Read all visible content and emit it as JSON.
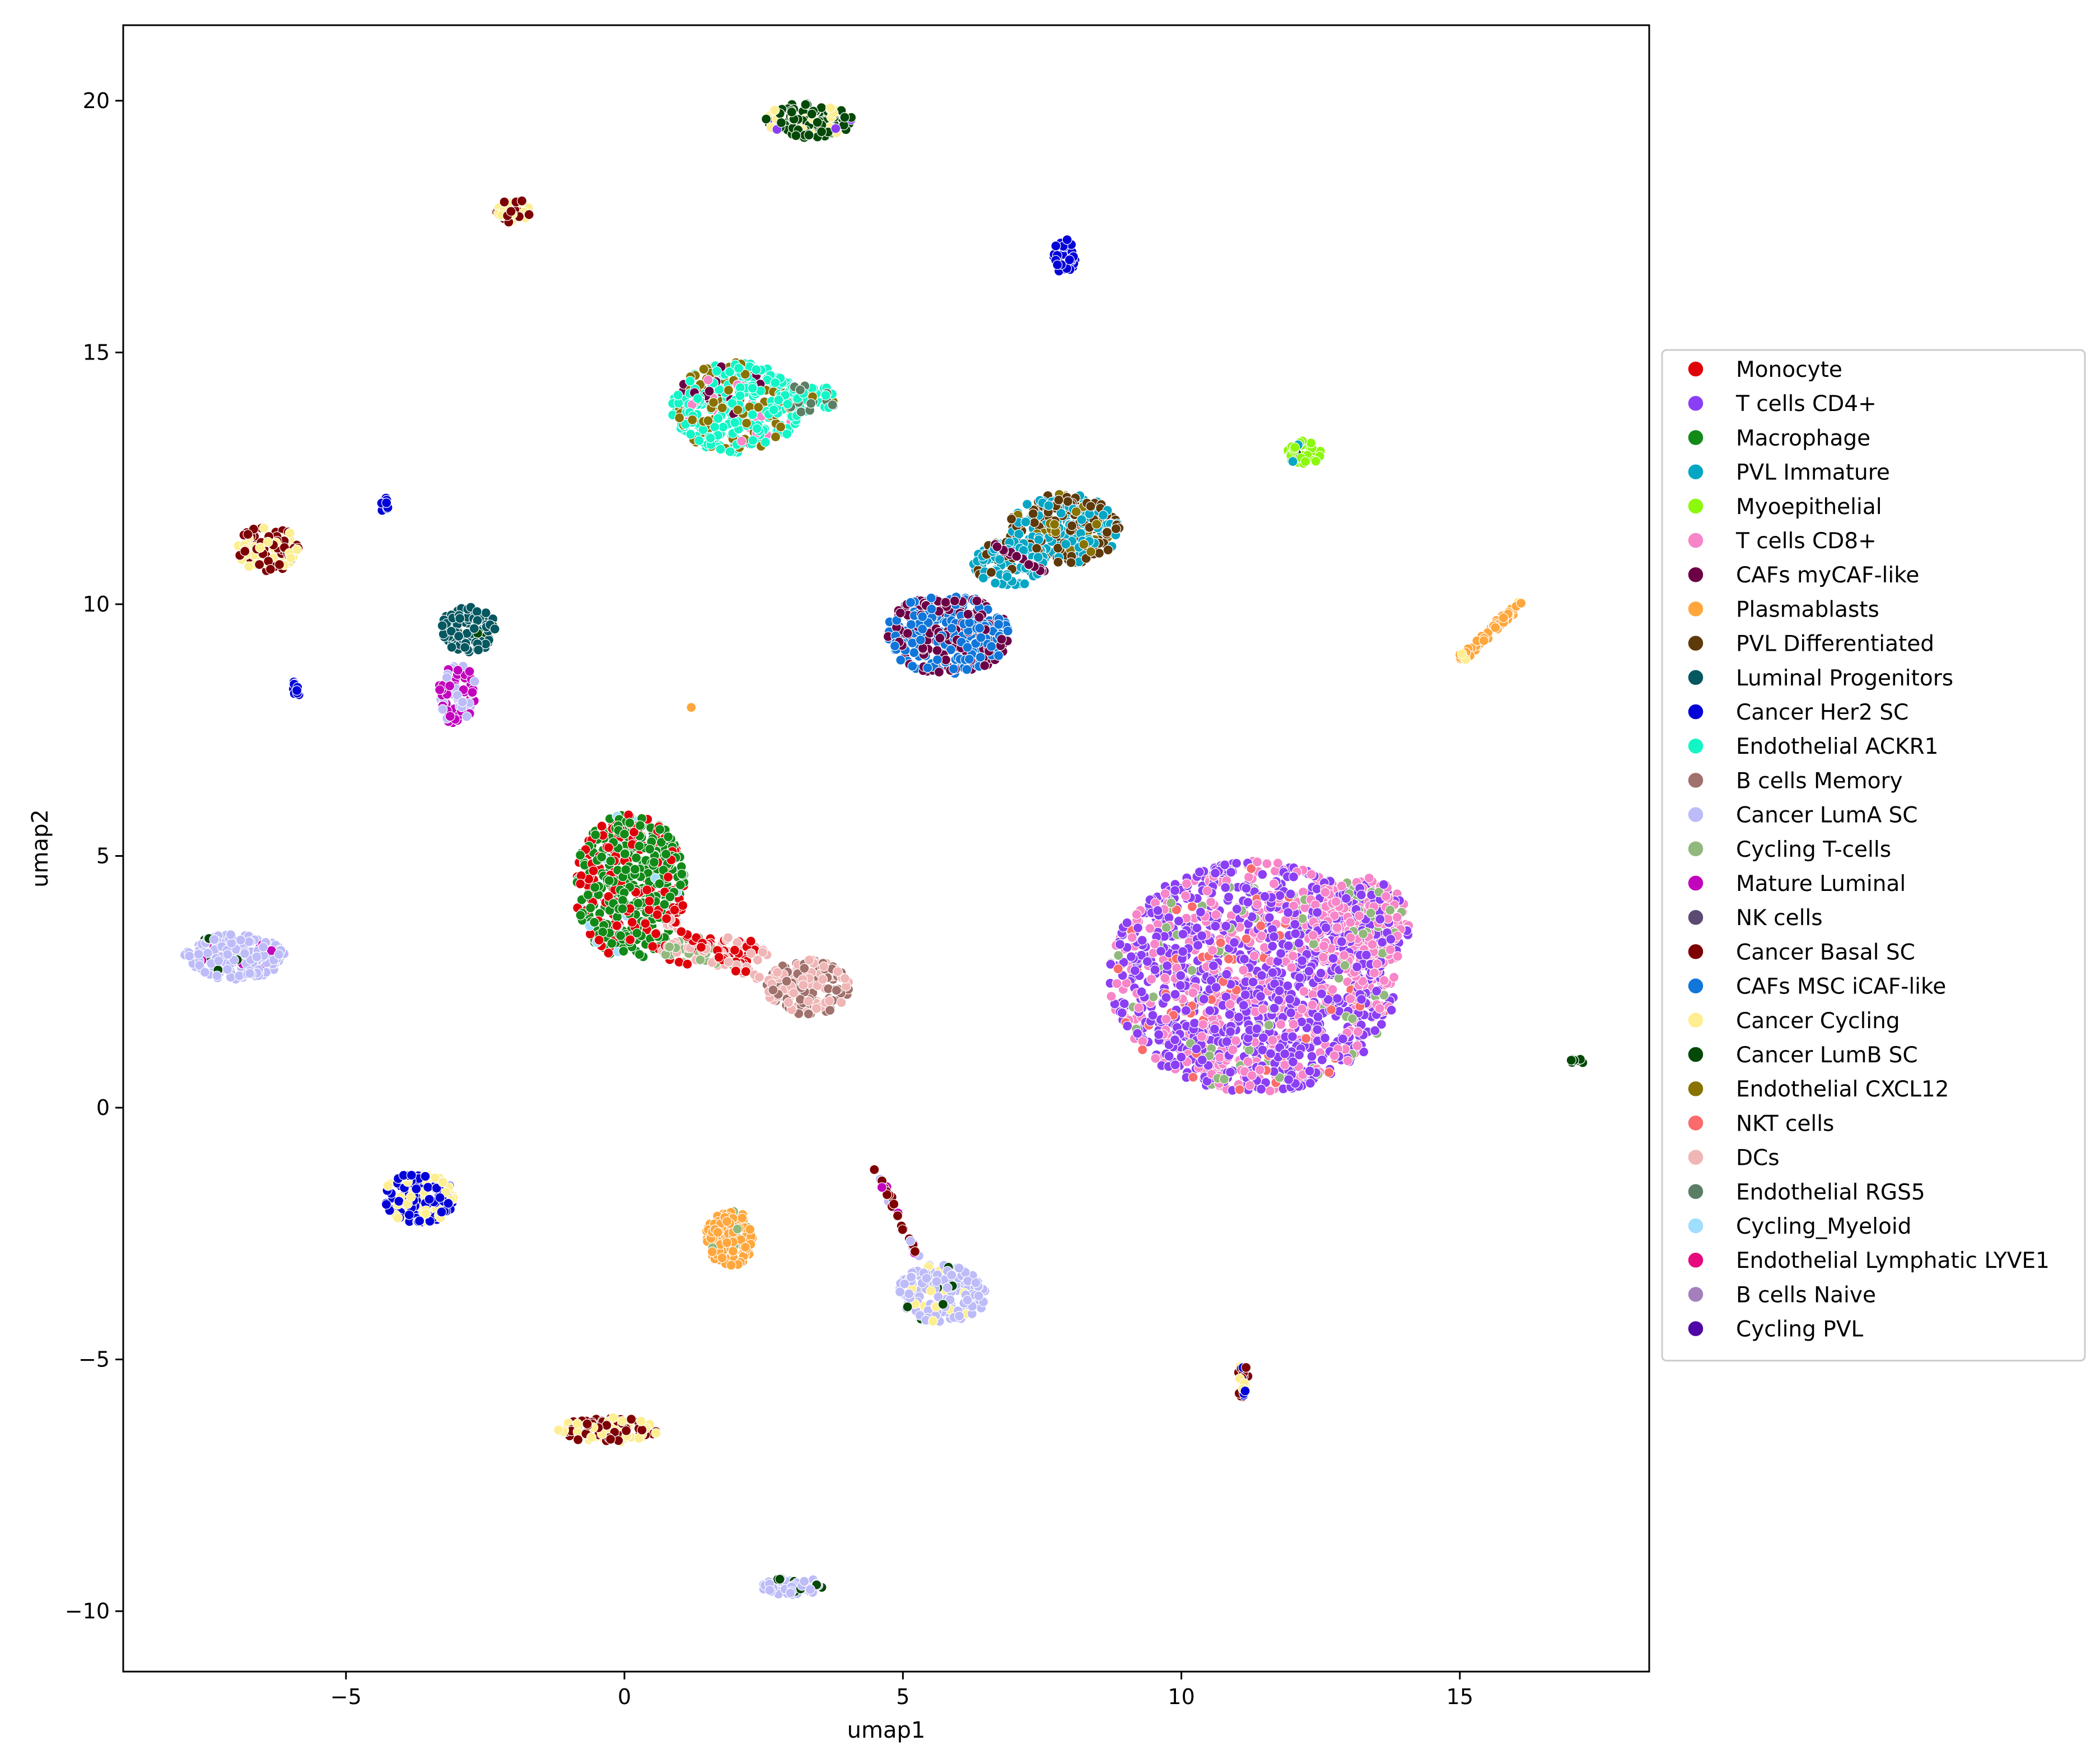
{
  "chart_data": {
    "type": "scatter",
    "title": "",
    "xlabel": "umap1",
    "ylabel": "umap2",
    "xlim": [
      -9,
      18.4
    ],
    "ylim": [
      -11.2,
      21.5
    ],
    "xticks": [
      {
        "value": -5,
        "label": "−5"
      },
      {
        "value": 0,
        "label": "0"
      },
      {
        "value": 5,
        "label": "5"
      },
      {
        "value": 10,
        "label": "10"
      },
      {
        "value": 15,
        "label": "15"
      }
    ],
    "yticks": [
      {
        "value": -10,
        "label": "−10"
      },
      {
        "value": -5,
        "label": "−5"
      },
      {
        "value": 0,
        "label": "0"
      },
      {
        "value": 5,
        "label": "5"
      },
      {
        "value": 10,
        "label": "10"
      },
      {
        "value": 15,
        "label": "15"
      },
      {
        "value": 20,
        "label": "20"
      }
    ],
    "grid": false,
    "legend_position": "right",
    "series": [
      {
        "name": "Monocyte",
        "color": "#e0000a"
      },
      {
        "name": "T cells CD4+",
        "color": "#8b3ff4"
      },
      {
        "name": "Macrophage",
        "color": "#128a18"
      },
      {
        "name": "PVL Immature",
        "color": "#04a6c4"
      },
      {
        "name": "Myoepithelial",
        "color": "#8cf80c"
      },
      {
        "name": "T cells CD8+",
        "color": "#f785c8"
      },
      {
        "name": "CAFs myCAF-like",
        "color": "#6b0046"
      },
      {
        "name": "Plasmablasts",
        "color": "#ffa73c"
      },
      {
        "name": "PVL Differentiated",
        "color": "#5e3a0a"
      },
      {
        "name": "Luminal Progenitors",
        "color": "#055760"
      },
      {
        "name": "Cancer Her2 SC",
        "color": "#0202d8"
      },
      {
        "name": "Endothelial ACKR1",
        "color": "#12f6c6"
      },
      {
        "name": "B cells Memory",
        "color": "#a1716c"
      },
      {
        "name": "Cancer LumA SC",
        "color": "#bdbcf8"
      },
      {
        "name": "Cycling T-cells",
        "color": "#92b97d"
      },
      {
        "name": "Mature Luminal",
        "color": "#c205bd"
      },
      {
        "name": "NK cells",
        "color": "#5d4a72"
      },
      {
        "name": "Cancer Basal SC",
        "color": "#7e0003"
      },
      {
        "name": "CAFs MSC iCAF-like",
        "color": "#1176da"
      },
      {
        "name": "Cancer Cycling",
        "color": "#fdee91"
      },
      {
        "name": "Cancer LumB SC",
        "color": "#054908"
      },
      {
        "name": "Endothelial CXCL12",
        "color": "#887300"
      },
      {
        "name": "NKT cells",
        "color": "#fb6b6c"
      },
      {
        "name": "DCs",
        "color": "#f0b5b5"
      },
      {
        "name": "Endothelial RGS5",
        "color": "#5b7f64"
      },
      {
        "name": "Cycling_Myeloid",
        "color": "#9fdefe"
      },
      {
        "name": "Endothelial Lymphatic LYVE1",
        "color": "#e60a7e"
      },
      {
        "name": "B cells Naive",
        "color": "#a380bb"
      },
      {
        "name": "Cycling PVL",
        "color": "#5005a6"
      }
    ],
    "clusters": [
      {
        "cx": 11.3,
        "cy": 2.6,
        "rx": 2.6,
        "ry": 2.3,
        "n": 1500,
        "mix": [
          [
            1,
            0.6
          ],
          [
            5,
            0.3
          ],
          [
            22,
            0.05
          ],
          [
            14,
            0.05
          ]
        ]
      },
      {
        "cx": 13.2,
        "cy": 3.6,
        "rx": 0.9,
        "ry": 1.0,
        "n": 250,
        "mix": [
          [
            5,
            0.6
          ],
          [
            1,
            0.3
          ],
          [
            14,
            0.1
          ]
        ]
      },
      {
        "cx": 0.1,
        "cy": 4.4,
        "rx": 1.0,
        "ry": 1.45,
        "n": 520,
        "mix": [
          [
            2,
            0.65
          ],
          [
            0,
            0.32
          ],
          [
            25,
            0.03
          ]
        ]
      },
      {
        "cx": 1.6,
        "cy": 3.1,
        "rx": 1.0,
        "ry": 0.3,
        "n": 90,
        "mix": [
          [
            23,
            0.5
          ],
          [
            0,
            0.3
          ],
          [
            14,
            0.2
          ]
        ]
      },
      {
        "cx": 3.3,
        "cy": 2.4,
        "rx": 0.75,
        "ry": 0.55,
        "n": 180,
        "mix": [
          [
            12,
            0.55
          ],
          [
            23,
            0.45
          ]
        ]
      },
      {
        "cx": 5.8,
        "cy": 9.4,
        "rx": 1.1,
        "ry": 0.8,
        "n": 360,
        "mix": [
          [
            18,
            0.55
          ],
          [
            6,
            0.45
          ]
        ]
      },
      {
        "cx": 7.9,
        "cy": 11.5,
        "rx": 1.0,
        "ry": 0.7,
        "n": 300,
        "mix": [
          [
            3,
            0.45
          ],
          [
            8,
            0.45
          ],
          [
            21,
            0.1
          ]
        ]
      },
      {
        "cx": 6.9,
        "cy": 10.8,
        "rx": 0.7,
        "ry": 0.45,
        "n": 110,
        "mix": [
          [
            3,
            0.8
          ],
          [
            8,
            0.2
          ]
        ]
      },
      {
        "cx": 2.0,
        "cy": 13.9,
        "rx": 1.15,
        "ry": 0.9,
        "n": 380,
        "mix": [
          [
            11,
            0.65
          ],
          [
            21,
            0.25
          ],
          [
            6,
            0.05
          ],
          [
            5,
            0.05
          ]
        ]
      },
      {
        "cx": 3.3,
        "cy": 14.1,
        "rx": 0.55,
        "ry": 0.3,
        "n": 60,
        "mix": [
          [
            11,
            0.5
          ],
          [
            24,
            0.3
          ],
          [
            21,
            0.2
          ]
        ]
      },
      {
        "cx": 3.3,
        "cy": 19.6,
        "rx": 0.8,
        "ry": 0.35,
        "n": 140,
        "mix": [
          [
            20,
            0.7
          ],
          [
            19,
            0.2
          ],
          [
            1,
            0.1
          ]
        ]
      },
      {
        "cx": -2.0,
        "cy": 17.8,
        "rx": 0.3,
        "ry": 0.25,
        "n": 40,
        "mix": [
          [
            17,
            0.6
          ],
          [
            19,
            0.4
          ]
        ]
      },
      {
        "cx": 7.9,
        "cy": 16.9,
        "rx": 0.2,
        "ry": 0.35,
        "n": 40,
        "mix": [
          [
            10,
            0.9
          ],
          [
            17,
            0.1
          ]
        ]
      },
      {
        "cx": 12.2,
        "cy": 13.0,
        "rx": 0.3,
        "ry": 0.25,
        "n": 40,
        "mix": [
          [
            4,
            0.8
          ],
          [
            20,
            0.1
          ],
          [
            3,
            0.1
          ]
        ]
      },
      {
        "cx": -6.4,
        "cy": 11.1,
        "rx": 0.55,
        "ry": 0.45,
        "n": 110,
        "mix": [
          [
            17,
            0.55
          ],
          [
            19,
            0.45
          ]
        ]
      },
      {
        "cx": -2.8,
        "cy": 9.5,
        "rx": 0.5,
        "ry": 0.45,
        "n": 100,
        "mix": [
          [
            9,
            0.9
          ],
          [
            20,
            0.1
          ]
        ]
      },
      {
        "cx": -3.0,
        "cy": 8.2,
        "rx": 0.35,
        "ry": 0.6,
        "n": 90,
        "mix": [
          [
            15,
            0.7
          ],
          [
            13,
            0.3
          ]
        ]
      },
      {
        "cx": -7.0,
        "cy": 3.0,
        "rx": 0.9,
        "ry": 0.45,
        "n": 200,
        "mix": [
          [
            13,
            0.92
          ],
          [
            15,
            0.04
          ],
          [
            20,
            0.04
          ]
        ]
      },
      {
        "cx": -3.7,
        "cy": -1.8,
        "rx": 0.65,
        "ry": 0.5,
        "n": 170,
        "mix": [
          [
            10,
            0.55
          ],
          [
            19,
            0.45
          ]
        ]
      },
      {
        "cx": 1.9,
        "cy": -2.6,
        "rx": 0.45,
        "ry": 0.55,
        "n": 140,
        "mix": [
          [
            7,
            0.92
          ],
          [
            14,
            0.08
          ]
        ]
      },
      {
        "cx": 5.7,
        "cy": -3.7,
        "rx": 0.8,
        "ry": 0.6,
        "n": 190,
        "mix": [
          [
            13,
            0.85
          ],
          [
            20,
            0.08
          ],
          [
            19,
            0.07
          ]
        ]
      },
      {
        "cx": -0.3,
        "cy": -6.4,
        "rx": 0.9,
        "ry": 0.25,
        "n": 110,
        "mix": [
          [
            17,
            0.55
          ],
          [
            19,
            0.45
          ]
        ]
      },
      {
        "cx": 3.0,
        "cy": -9.5,
        "rx": 0.55,
        "ry": 0.18,
        "n": 60,
        "mix": [
          [
            13,
            0.85
          ],
          [
            20,
            0.15
          ]
        ]
      },
      {
        "cx": 11.1,
        "cy": -5.4,
        "rx": 0.1,
        "ry": 0.35,
        "n": 25,
        "mix": [
          [
            17,
            0.5
          ],
          [
            10,
            0.3
          ],
          [
            19,
            0.2
          ]
        ]
      },
      {
        "cx": -5.9,
        "cy": 8.3,
        "rx": 0.08,
        "ry": 0.18,
        "n": 12,
        "mix": [
          [
            10,
            1.0
          ]
        ]
      },
      {
        "cx": -4.3,
        "cy": 12.0,
        "rx": 0.08,
        "ry": 0.18,
        "n": 10,
        "mix": [
          [
            10,
            1.0
          ]
        ]
      },
      {
        "cx": 17.1,
        "cy": 0.9,
        "rx": 0.12,
        "ry": 0.08,
        "n": 10,
        "mix": [
          [
            20,
            1.0
          ]
        ]
      }
    ],
    "trails": [
      {
        "x0": 15.0,
        "y0": 8.9,
        "x1": 16.1,
        "y1": 10.05,
        "n": 70,
        "width": 0.12,
        "mix": [
          [
            7,
            0.9
          ],
          [
            19,
            0.1
          ]
        ]
      },
      {
        "x0": 4.5,
        "y0": -1.2,
        "x1": 5.3,
        "y1": -3.0,
        "n": 30,
        "width": 0.08,
        "mix": [
          [
            17,
            0.6
          ],
          [
            15,
            0.2
          ],
          [
            13,
            0.2
          ]
        ]
      },
      {
        "x0": 0.6,
        "y0": 3.8,
        "x1": 2.4,
        "y1": 2.6,
        "n": 50,
        "width": 0.2,
        "mix": [
          [
            0,
            0.5
          ],
          [
            23,
            0.5
          ]
        ]
      },
      {
        "x0": 7.6,
        "y0": 10.6,
        "x1": 6.6,
        "y1": 11.2,
        "n": 20,
        "width": 0.08,
        "mix": [
          [
            6,
            1.0
          ]
        ]
      }
    ],
    "points": [
      {
        "x": 1.2,
        "y": 7.95,
        "color": 7
      }
    ]
  }
}
